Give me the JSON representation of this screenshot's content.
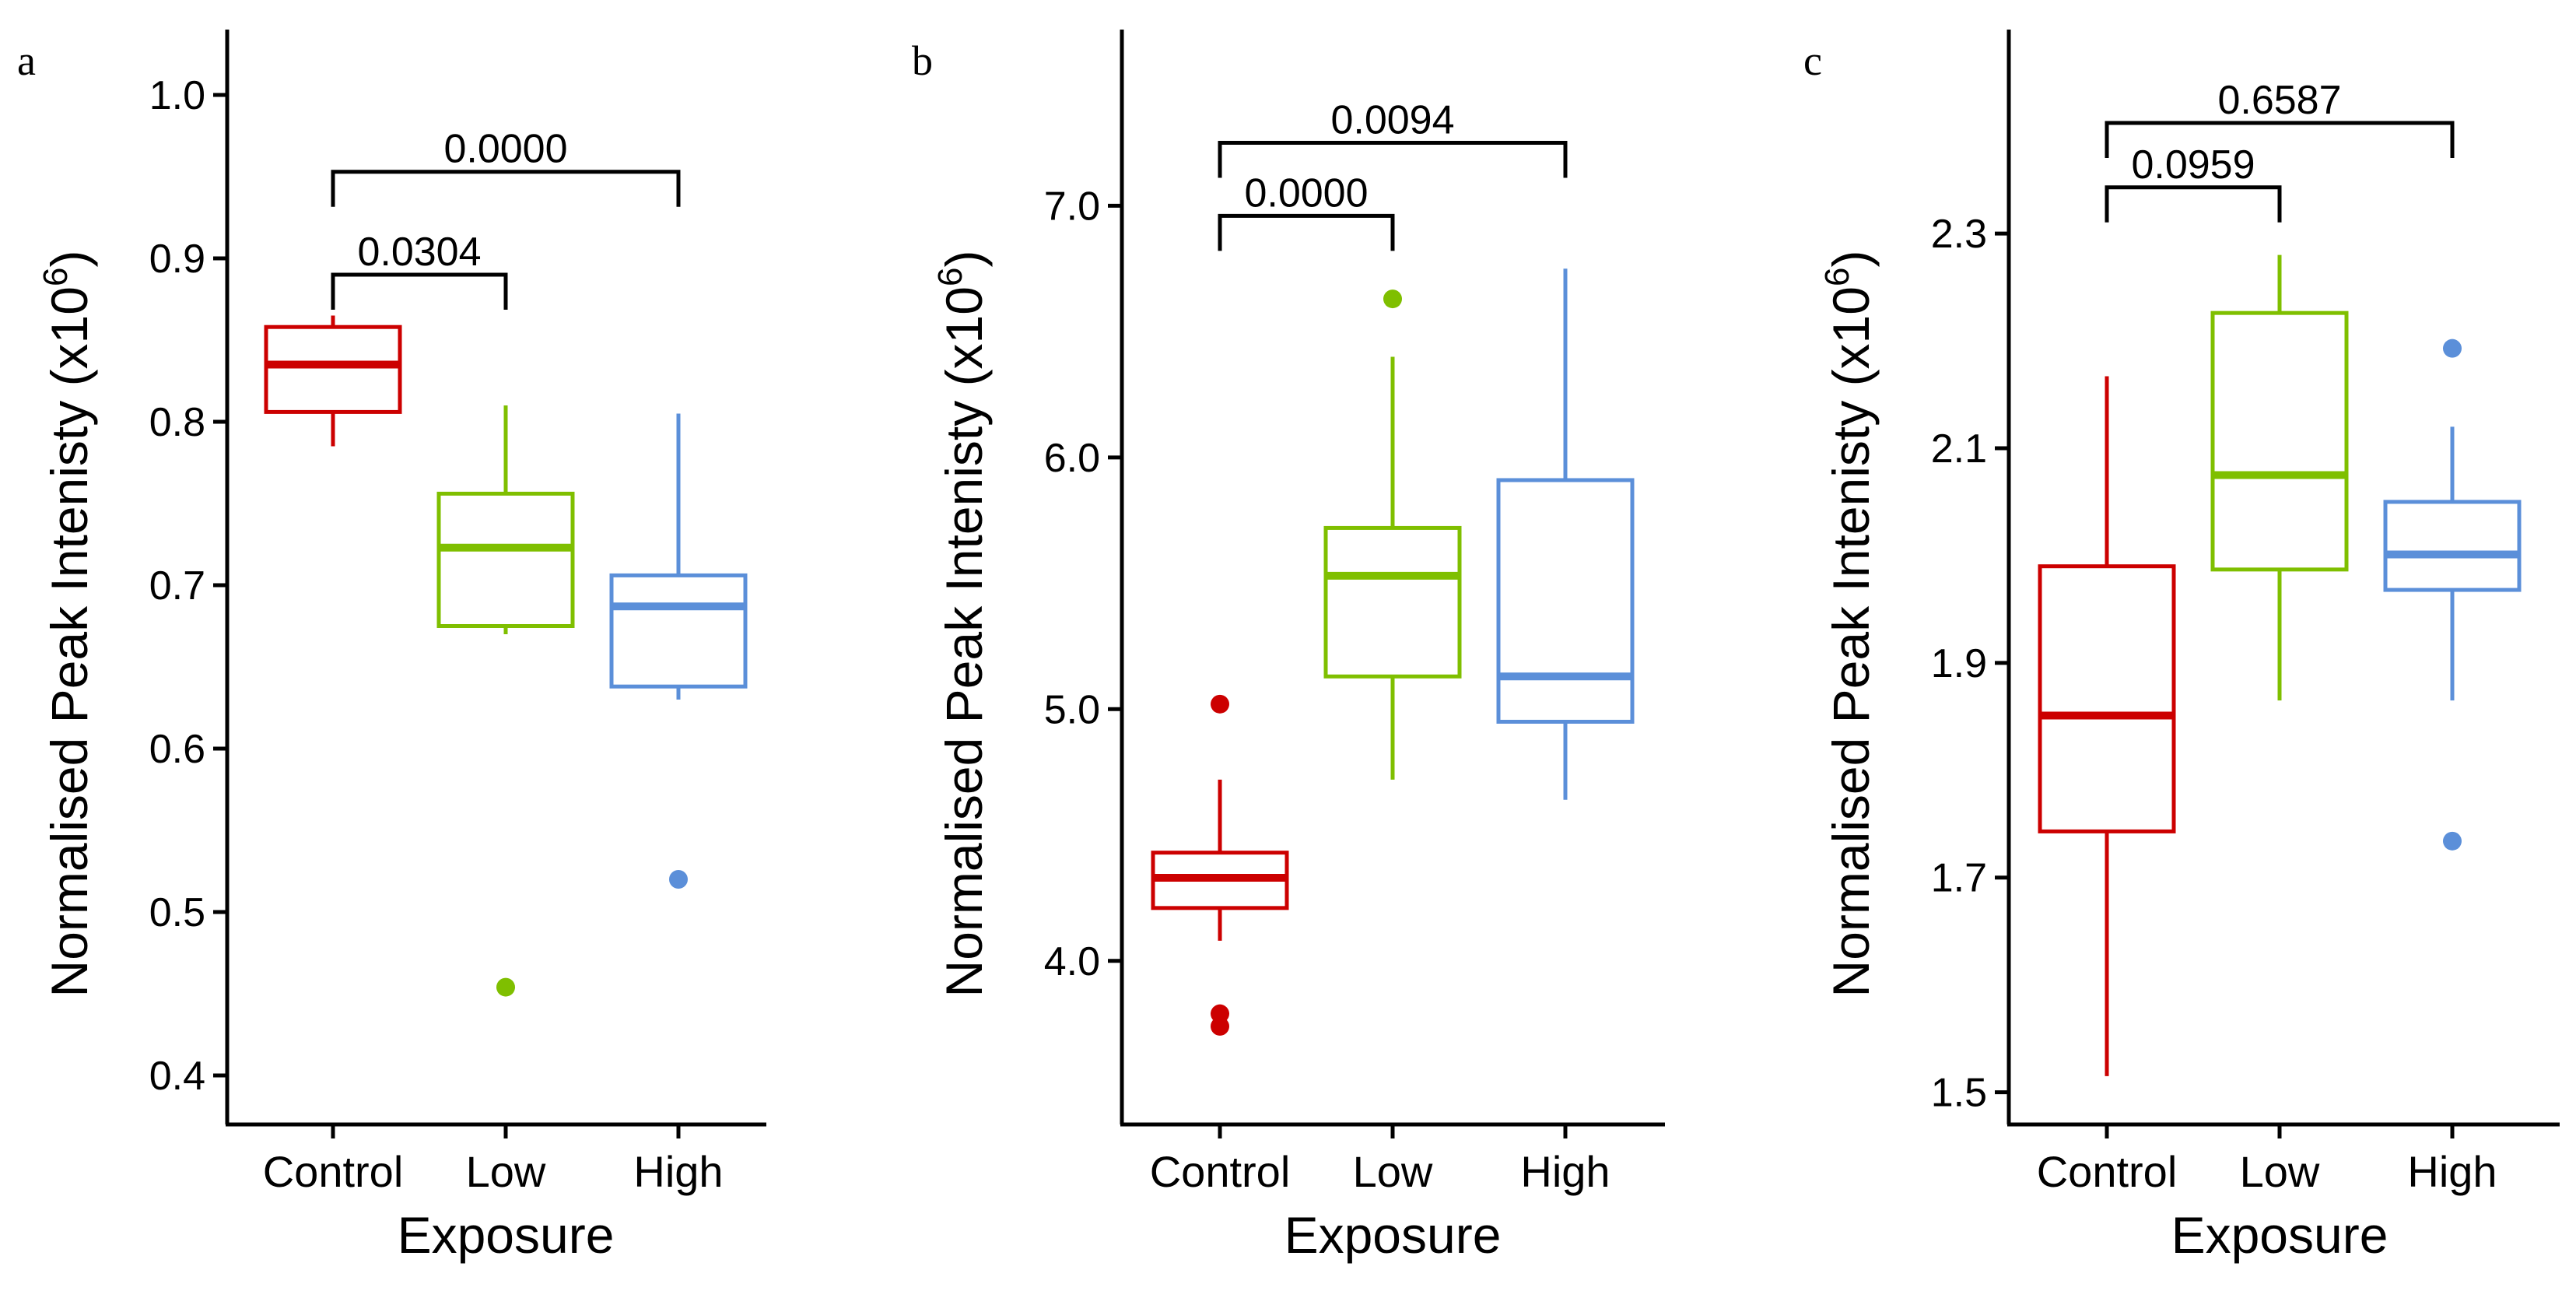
{
  "chart_data": [
    {
      "type": "box",
      "panel_label": "a",
      "xlabel": "Exposure",
      "ylabel_main": "Normalised Peak Intenisty (x10",
      "ylabel_exp": "6",
      "ylabel_close": ")",
      "ylim": [
        0.37,
        1.04
      ],
      "yticks": [
        0.4,
        0.5,
        0.6,
        0.7,
        0.8,
        0.9,
        1.0
      ],
      "ytick_labels": [
        "0.4",
        "0.5",
        "0.6",
        "0.7",
        "0.8",
        "0.9",
        "1.0"
      ],
      "categories": [
        "Control",
        "Low",
        "High"
      ],
      "boxes": [
        {
          "category": "Control",
          "min": 0.785,
          "q1": 0.806,
          "median": 0.835,
          "q3": 0.858,
          "max": 0.865,
          "outliers": [],
          "color": "#cc0000"
        },
        {
          "category": "Low",
          "min": 0.67,
          "q1": 0.675,
          "median": 0.723,
          "q3": 0.756,
          "max": 0.81,
          "outliers": [
            0.454
          ],
          "color": "#7fbf00"
        },
        {
          "category": "High",
          "min": 0.63,
          "q1": 0.638,
          "median": 0.687,
          "q3": 0.706,
          "max": 0.805,
          "outliers": [
            0.52
          ],
          "color": "#5b8fd9"
        }
      ],
      "comparisons": [
        {
          "from": "Control",
          "to": "Low",
          "label": "0.0304",
          "level": 0.89
        },
        {
          "from": "Control",
          "to": "High",
          "label": "0.0000",
          "level": 0.953
        }
      ]
    },
    {
      "type": "box",
      "panel_label": "b",
      "xlabel": "Exposure",
      "ylabel_main": "Normalised Peak Intenisty (x10",
      "ylabel_exp": "6",
      "ylabel_close": ")",
      "ylim": [
        3.35,
        7.7
      ],
      "yticks": [
        4.0,
        5.0,
        6.0,
        7.0
      ],
      "ytick_labels": [
        "4.0",
        "5.0",
        "6.0",
        "7.0"
      ],
      "categories": [
        "Control",
        "Low",
        "High"
      ],
      "boxes": [
        {
          "category": "Control",
          "min": 4.08,
          "q1": 4.21,
          "median": 4.33,
          "q3": 4.43,
          "max": 4.72,
          "outliers": [
            5.02,
            3.79,
            3.74
          ],
          "color": "#cc0000"
        },
        {
          "category": "Low",
          "min": 4.72,
          "q1": 5.13,
          "median": 5.53,
          "q3": 5.72,
          "max": 6.4,
          "outliers": [
            6.63
          ],
          "color": "#7fbf00"
        },
        {
          "category": "High",
          "min": 4.64,
          "q1": 4.95,
          "median": 5.13,
          "q3": 5.91,
          "max": 6.75,
          "outliers": [],
          "color": "#5b8fd9"
        }
      ],
      "comparisons": [
        {
          "from": "Control",
          "to": "Low",
          "label": "0.0000",
          "level": 6.96
        },
        {
          "from": "Control",
          "to": "High",
          "label": "0.0094",
          "level": 7.25
        }
      ]
    },
    {
      "type": "box",
      "panel_label": "c",
      "xlabel": "Exposure",
      "ylabel_main": "Normalised Peak Intenisty (x10",
      "ylabel_exp": "6",
      "ylabel_close": ")",
      "ylim": [
        1.47,
        2.49
      ],
      "yticks": [
        1.5,
        1.7,
        1.9,
        2.1,
        2.3
      ],
      "ytick_labels": [
        "1.5",
        "1.7",
        "1.9",
        "2.1",
        "2.3"
      ],
      "categories": [
        "Control",
        "Low",
        "High"
      ],
      "boxes": [
        {
          "category": "Control",
          "min": 1.515,
          "q1": 1.743,
          "median": 1.851,
          "q3": 1.99,
          "max": 2.167,
          "outliers": [],
          "color": "#cc0000"
        },
        {
          "category": "Low",
          "min": 1.865,
          "q1": 1.987,
          "median": 2.075,
          "q3": 2.226,
          "max": 2.28,
          "outliers": [],
          "color": "#7fbf00"
        },
        {
          "category": "High",
          "min": 1.865,
          "q1": 1.968,
          "median": 2.001,
          "q3": 2.05,
          "max": 2.12,
          "outliers": [
            2.193,
            1.734
          ],
          "color": "#5b8fd9"
        }
      ],
      "comparisons": [
        {
          "from": "Control",
          "to": "Low",
          "label": "0.0959",
          "level": 2.343
        },
        {
          "from": "Control",
          "to": "High",
          "label": "0.6587",
          "level": 2.403
        }
      ]
    }
  ]
}
